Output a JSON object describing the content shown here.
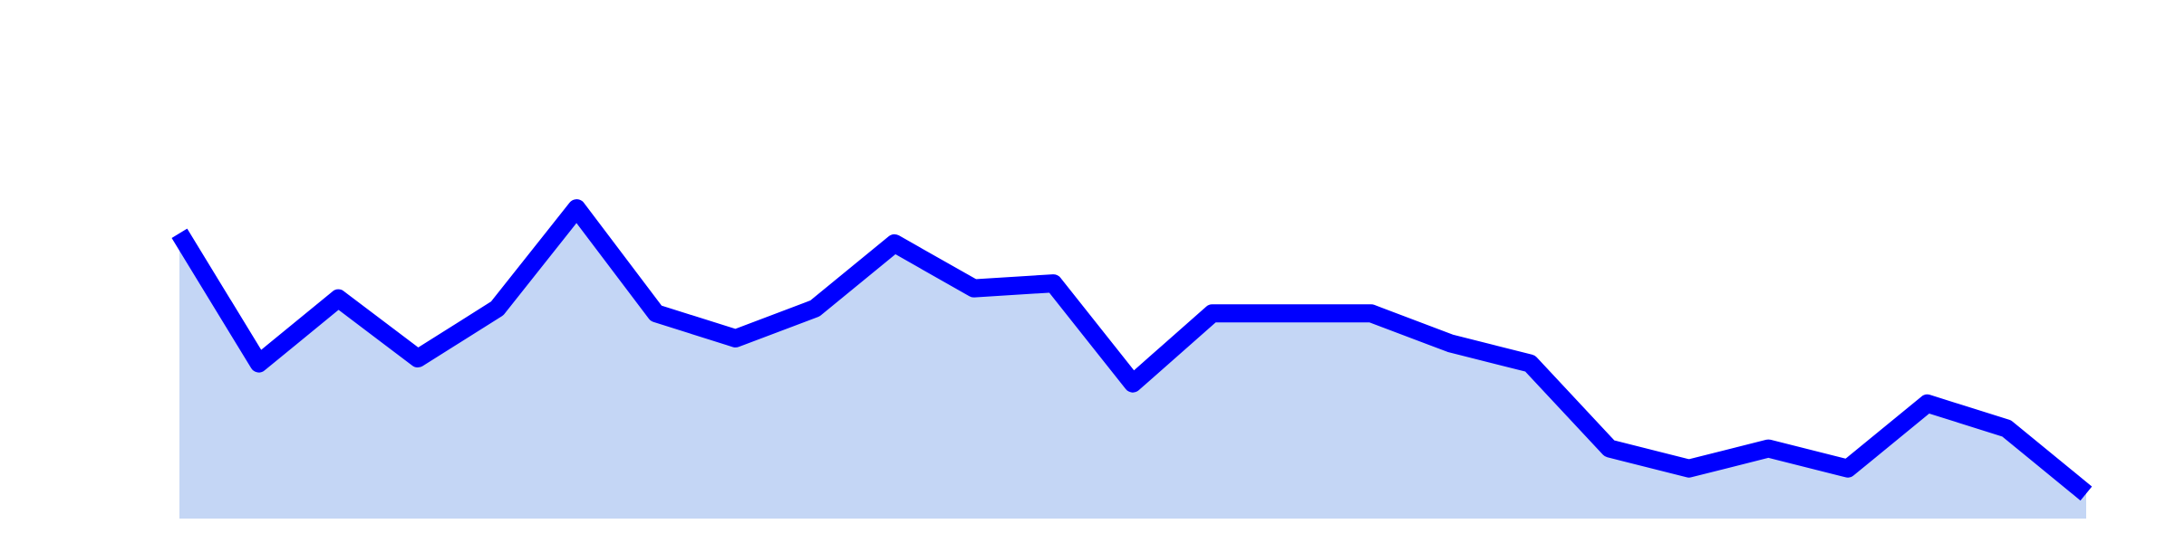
{
  "chart_data": {
    "type": "area",
    "x": [
      0,
      1,
      2,
      3,
      4,
      5,
      6,
      7,
      8,
      9,
      10,
      11,
      12,
      13,
      14,
      15,
      16,
      17,
      18,
      19,
      20,
      21,
      22,
      23,
      24
    ],
    "values": [
      57,
      31,
      44,
      32,
      42,
      62,
      41,
      36,
      42,
      55,
      46,
      47,
      27,
      41,
      41,
      41,
      35,
      31,
      14,
      10,
      14,
      10,
      23,
      18,
      5
    ],
    "xlim": [
      0,
      24
    ],
    "ylim": [
      0,
      100
    ],
    "grid": false,
    "legend": "none",
    "colors": {
      "line": "#0000ff",
      "fill": "#c4d6f5"
    }
  }
}
